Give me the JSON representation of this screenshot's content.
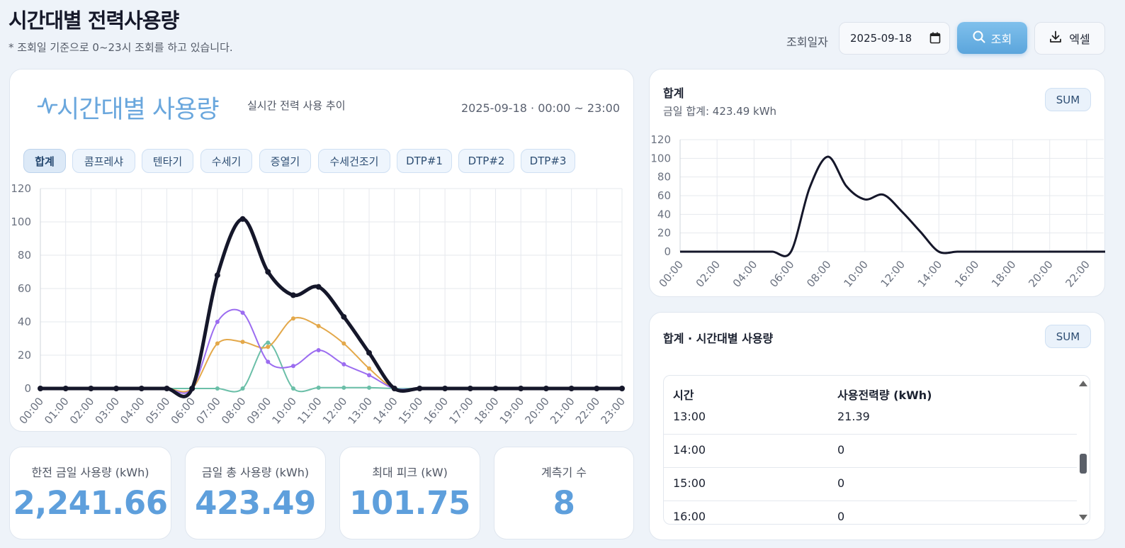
{
  "header": {
    "title": "시간대별 전력사용량",
    "subtitle": "* 조회일 기준으로 0~23시 조회를 하고 있습니다.",
    "date_label": "조회일자",
    "date_value": "2025-09-18",
    "search_label": "조회",
    "excel_label": "엑셀"
  },
  "main_card": {
    "title": "시간대별 사용량",
    "subtitle": "실시간 전력 사용 추이",
    "range": "2025-09-18 · 00:00 ~ 23:00",
    "filters": [
      "합계",
      "콤프레샤",
      "텐타기",
      "수세기",
      "증열기",
      "수세건조기",
      "DTP#1",
      "DTP#2",
      "DTP#3"
    ],
    "active_filter": "합계"
  },
  "stats": [
    {
      "label": "한전 금일 사용량 (kWh)",
      "value": "2,241.66"
    },
    {
      "label": "금일 총 사용량 (kWh)",
      "value": "423.49"
    },
    {
      "label": "최대 피크 (kW)",
      "value": "101.75"
    },
    {
      "label": "계측기 수",
      "value": "8"
    }
  ],
  "sum_card": {
    "title": "합계",
    "subtitle": "금일 합계: 423.49 kWh",
    "badge": "SUM"
  },
  "table_card": {
    "title": "합계 · 시간대별 사용량",
    "badge": "SUM",
    "columns": [
      "시간",
      "사용전력량 (kWh)"
    ],
    "rows": [
      {
        "time": "13:00",
        "value": "21.39"
      },
      {
        "time": "14:00",
        "value": "0"
      },
      {
        "time": "15:00",
        "value": "0"
      },
      {
        "time": "16:00",
        "value": "0"
      }
    ]
  },
  "colors": {
    "accent": "#6aa7dd",
    "total": "#15172a",
    "purple": "#9b6cf0",
    "orange": "#e3a84a",
    "teal": "#6bbfa8"
  },
  "chart_data": [
    {
      "type": "line",
      "title": "시간대별 사용량",
      "categories": [
        "00:00",
        "01:00",
        "02:00",
        "03:00",
        "04:00",
        "05:00",
        "06:00",
        "07:00",
        "08:00",
        "09:00",
        "10:00",
        "11:00",
        "12:00",
        "13:00",
        "14:00",
        "15:00",
        "16:00",
        "17:00",
        "18:00",
        "19:00",
        "20:00",
        "21:00",
        "22:00",
        "23:00"
      ],
      "ylim": [
        0,
        120
      ],
      "yticks": [
        0,
        20,
        40,
        60,
        80,
        100,
        120
      ],
      "series": [
        {
          "name": "합계",
          "color": "#15172a",
          "values": [
            0,
            0,
            0,
            0,
            0,
            0,
            0,
            68,
            101.75,
            70,
            56,
            61,
            43,
            21.39,
            0,
            0,
            0,
            0,
            0,
            0,
            0,
            0,
            0,
            0
          ]
        },
        {
          "name": "series-purple",
          "color": "#9b6cf0",
          "values": [
            0,
            0,
            0,
            0,
            0,
            0,
            0,
            40,
            45.5,
            16,
            13.5,
            23,
            14.5,
            8,
            0,
            0,
            0,
            0,
            0,
            0,
            0,
            0,
            0,
            0
          ]
        },
        {
          "name": "series-orange",
          "color": "#e3a84a",
          "values": [
            0,
            0,
            0,
            0,
            0,
            0,
            0,
            27,
            28,
            25,
            42,
            37.5,
            27,
            12,
            0,
            0,
            0,
            0,
            0,
            0,
            0,
            0,
            0,
            0
          ]
        },
        {
          "name": "series-teal",
          "color": "#6bbfa8",
          "values": [
            0,
            0,
            0,
            0,
            0,
            0,
            0,
            0,
            0,
            27.5,
            0,
            0.5,
            0.5,
            0.5,
            0,
            0,
            0,
            0,
            0,
            0,
            0,
            0,
            0,
            0
          ]
        }
      ]
    },
    {
      "type": "line",
      "title": "합계",
      "categories": [
        "00:00",
        "01:00",
        "02:00",
        "03:00",
        "04:00",
        "05:00",
        "06:00",
        "07:00",
        "08:00",
        "09:00",
        "10:00",
        "11:00",
        "12:00",
        "13:00",
        "14:00",
        "15:00",
        "16:00",
        "17:00",
        "18:00",
        "19:00",
        "20:00",
        "21:00",
        "22:00",
        "23:00"
      ],
      "tick_labels": [
        "00:00",
        "02:00",
        "04:00",
        "06:00",
        "08:00",
        "10:00",
        "12:00",
        "14:00",
        "16:00",
        "18:00",
        "20:00",
        "22:00"
      ],
      "ylim": [
        0,
        120
      ],
      "yticks": [
        0,
        20,
        40,
        60,
        80,
        100,
        120
      ],
      "series": [
        {
          "name": "합계",
          "color": "#15172a",
          "values": [
            0,
            0,
            0,
            0,
            0,
            0,
            0,
            68,
            101.75,
            70,
            56,
            61,
            43,
            21.39,
            0,
            0,
            0,
            0,
            0,
            0,
            0,
            0,
            0,
            0
          ]
        }
      ]
    }
  ]
}
